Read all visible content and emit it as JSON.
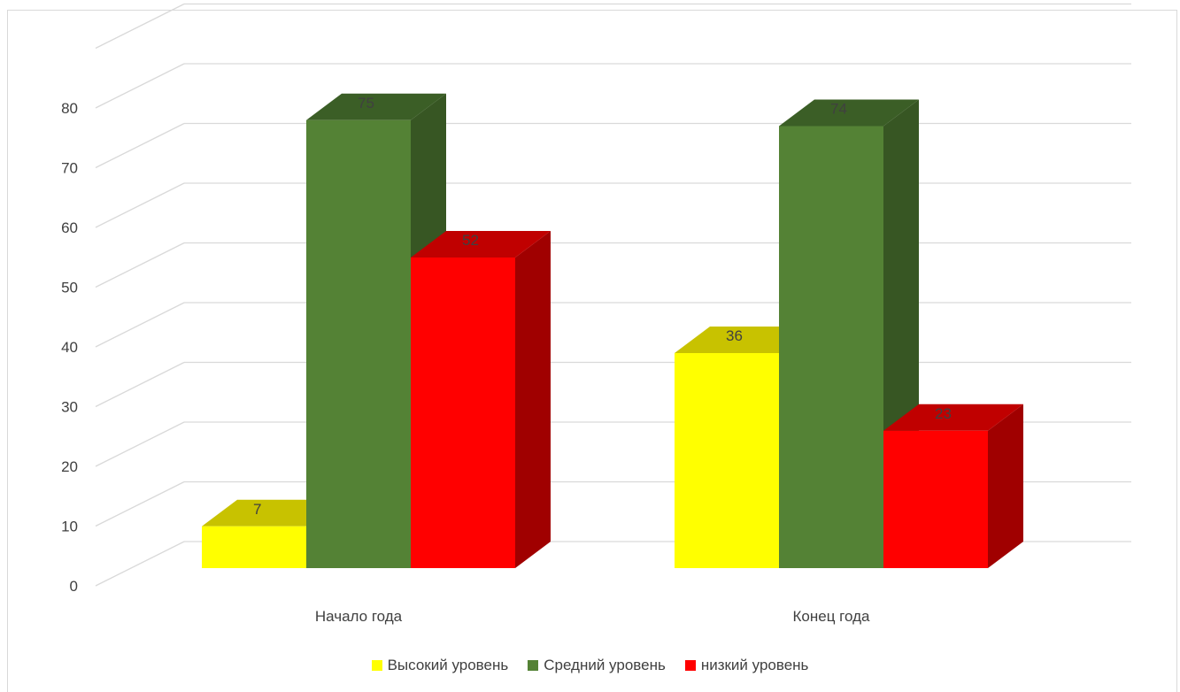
{
  "chart_data": {
    "type": "bar",
    "categories": [
      "Начало года",
      "Конец года"
    ],
    "series": [
      {
        "name": "Высокий уровень",
        "values": [
          7,
          36
        ],
        "color": "#FFFF00",
        "top_color": "#C8C200",
        "side_color": "#B5B000"
      },
      {
        "name": "Средний уровень",
        "values": [
          75,
          74
        ],
        "color": "#548235",
        "top_color": "#3B5E26",
        "side_color": "#375623"
      },
      {
        "name": "низкий уровень",
        "values": [
          52,
          23
        ],
        "color": "#FF0000",
        "top_color": "#C00000",
        "side_color": "#A00000"
      }
    ],
    "yticks": [
      "0",
      "10",
      "20",
      "30",
      "40",
      "50",
      "60",
      "70",
      "80"
    ],
    "ylim": [
      0,
      90
    ],
    "title": "",
    "xlabel": "",
    "ylabel": "",
    "grid": true,
    "legend_position": "bottom",
    "style": "3d-clustered-column"
  }
}
